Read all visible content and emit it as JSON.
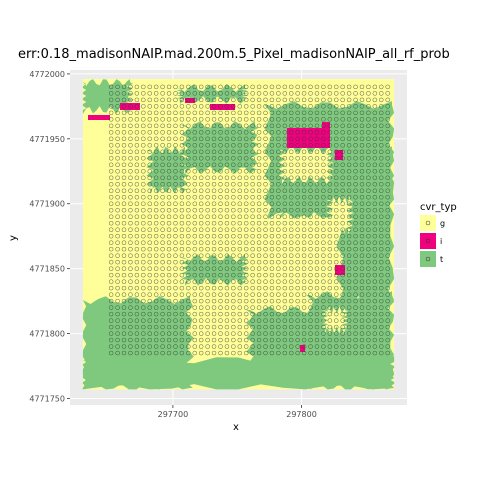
{
  "chart_data": {
    "type": "scatter",
    "title": "err:0.18_madisonNAIP.mad.200m.5_Pixel_madisonNAIP_all_rf_prob",
    "xlabel": "x",
    "ylabel": "y",
    "xlim": [
      297620,
      297882
    ],
    "ylim": [
      4771745,
      4772003
    ],
    "x_ticks": [
      297700,
      297800
    ],
    "x_tick_labels": [
      "297700",
      "297800"
    ],
    "y_ticks": [
      4771750,
      4771800,
      4771850,
      4771900,
      4771950,
      4772000
    ],
    "y_tick_labels": [
      "4771750",
      "4771800",
      "4771850",
      "4771900",
      "4771950",
      "4772000"
    ],
    "grid": true,
    "legend": {
      "title": "cvr_typ",
      "position": "right",
      "entries": [
        {
          "label": "g",
          "color": "#ffff99"
        },
        {
          "label": "i",
          "color": "#f0027f"
        },
        {
          "label": "t",
          "color": "#7fc97f"
        }
      ]
    },
    "raster": {
      "extent_x": [
        297630,
        297872
      ],
      "extent_y": [
        4771757,
        4771996
      ],
      "background_class": "g"
    },
    "point_grid": {
      "spacing": 5,
      "x_start": 297652,
      "x_end": 297867,
      "y_start": 4771785,
      "y_end": 4771990
    }
  },
  "colors": {
    "panel": "#ebebeb",
    "grid_major": "#ffffff",
    "g": "#ffff99",
    "i": "#f0027f",
    "t": "#7fc97f"
  }
}
